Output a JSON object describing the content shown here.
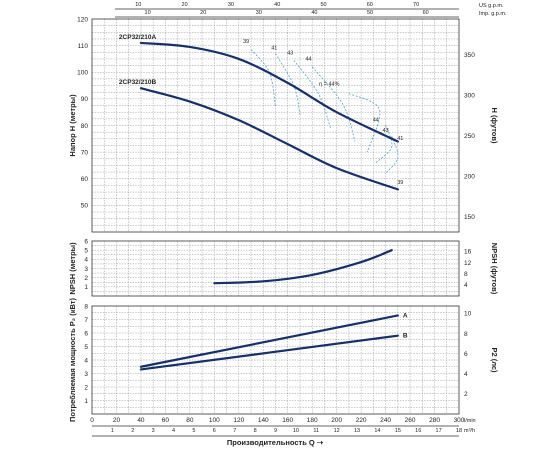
{
  "chart_data": [
    {
      "type": "line",
      "panel": "head",
      "ylabel": "Напор H (метры)",
      "y2label": "H (футов)",
      "ylim": [
        40,
        120
      ],
      "yticks": [
        50,
        60,
        70,
        80,
        90,
        100,
        110,
        120
      ],
      "y2ticks": [
        150,
        200,
        250,
        300,
        350
      ],
      "top_axes": {
        "us": {
          "unit": "US g.p.m.",
          "ticks": [
            10,
            20,
            30,
            40,
            50,
            60,
            70
          ]
        },
        "imp": {
          "unit": "Imp. g.p.m.",
          "ticks": [
            10,
            20,
            30,
            40,
            50,
            60,
            70
          ]
        }
      },
      "series": [
        {
          "name": "2CP32/210A",
          "x": [
            40,
            80,
            120,
            160,
            200,
            250
          ],
          "y": [
            111,
            109.5,
            105,
            96,
            85,
            74
          ]
        },
        {
          "name": "2CP32/210B",
          "x": [
            40,
            80,
            120,
            160,
            200,
            250
          ],
          "y": [
            94,
            89,
            82,
            73,
            64,
            56
          ]
        }
      ],
      "efficiency_labels": [
        "39",
        "41",
        "43",
        "44",
        "η = 44%",
        "44",
        "43",
        "41",
        "39"
      ]
    },
    {
      "type": "line",
      "panel": "npsh",
      "ylabel": "NPSH (метры)",
      "y2label": "NPSH (футов)",
      "ylim": [
        0,
        6
      ],
      "yticks": [
        1,
        2,
        3,
        4,
        5,
        6
      ],
      "y2ticks": [
        4,
        8,
        12,
        16
      ],
      "series": [
        {
          "x": [
            100,
            140,
            180,
            220,
            245
          ],
          "y": [
            1.4,
            1.6,
            2.3,
            3.7,
            5.0
          ]
        }
      ]
    },
    {
      "type": "line",
      "panel": "power",
      "ylabel": "Потребляемая мощность P₂ (кВт)",
      "y2label": "P2 (лс)",
      "ylim": [
        0,
        8
      ],
      "yticks": [
        1,
        2,
        3,
        4,
        5,
        6,
        7,
        8
      ],
      "y2ticks": [
        2,
        4,
        6,
        8,
        10
      ],
      "xlabel": "Производительность Q",
      "x_lpm": {
        "unit": "l/min",
        "ticks": [
          0,
          20,
          40,
          60,
          80,
          100,
          120,
          140,
          160,
          180,
          200,
          220,
          240,
          260,
          280,
          300
        ]
      },
      "x_m3h": {
        "unit": "m³/h",
        "ticks": [
          1,
          2,
          3,
          4,
          5,
          6,
          7,
          8,
          9,
          10,
          11,
          12,
          13,
          14,
          15,
          16,
          17,
          18
        ]
      },
      "series": [
        {
          "name": "A",
          "x": [
            40,
            250
          ],
          "y": [
            3.5,
            7.3
          ]
        },
        {
          "name": "B",
          "x": [
            40,
            250
          ],
          "y": [
            3.3,
            5.8
          ]
        }
      ]
    }
  ]
}
